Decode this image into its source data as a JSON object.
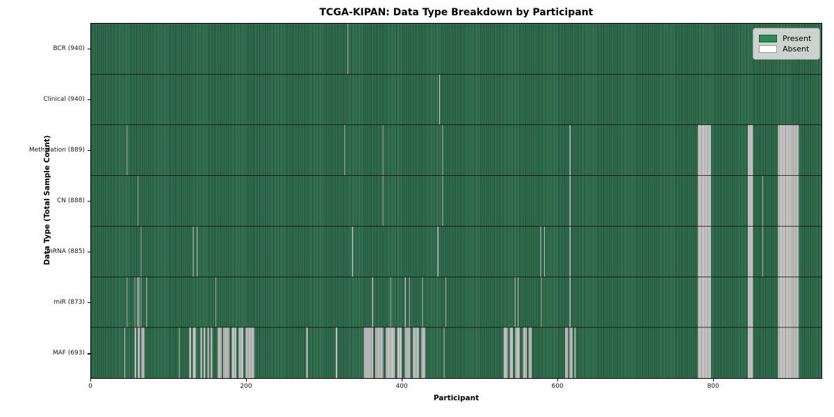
{
  "title": "TCGA-KIPAN: Data Type Breakdown by Participant",
  "xlabel": "Participant",
  "ylabel": "Data Type (Total Sample Count)",
  "legend": {
    "entries": [
      {
        "label": "Present",
        "color": "#2e8b57"
      },
      {
        "label": "Absent",
        "color": "#ffffff"
      }
    ]
  },
  "colors": {
    "present_base": "#30734f",
    "absent_stripe": "#d2d2d2",
    "separator": "#000000"
  },
  "chart_data": {
    "type": "heatmap",
    "x_max": 940,
    "x_ticks": [
      0,
      200,
      400,
      600,
      800
    ],
    "legend_position": "upper right",
    "grid": false,
    "rows": [
      {
        "label": "BCR (940)",
        "total": 940,
        "absent": [
          [
            330,
            331
          ]
        ]
      },
      {
        "label": "Clinical (940)",
        "total": 940,
        "absent": [
          [
            448,
            449
          ]
        ]
      },
      {
        "label": "Methylation (889)",
        "total": 889,
        "absent": [
          [
            46,
            47
          ],
          [
            326,
            327
          ],
          [
            375,
            376
          ],
          [
            452,
            453
          ],
          [
            616,
            617
          ],
          [
            781,
            798
          ],
          [
            845,
            852
          ],
          [
            884,
            911
          ]
        ]
      },
      {
        "label": "CN (888)",
        "total": 888,
        "absent": [
          [
            60,
            61
          ],
          [
            375,
            376
          ],
          [
            452,
            453
          ],
          [
            616,
            617
          ],
          [
            781,
            798
          ],
          [
            845,
            852
          ],
          [
            864,
            865
          ],
          [
            884,
            911
          ]
        ]
      },
      {
        "label": "mRNA (885)",
        "total": 885,
        "absent": [
          [
            64,
            65
          ],
          [
            131,
            132
          ],
          [
            136,
            137
          ],
          [
            336,
            337
          ],
          [
            446,
            447
          ],
          [
            578,
            579
          ],
          [
            583,
            584
          ],
          [
            616,
            617
          ],
          [
            781,
            798
          ],
          [
            845,
            852
          ],
          [
            864,
            865
          ],
          [
            884,
            911
          ]
        ]
      },
      {
        "label": "miR (873)",
        "total": 873,
        "absent": [
          [
            46,
            47
          ],
          [
            56,
            57
          ],
          [
            59,
            60
          ],
          [
            61,
            62
          ],
          [
            64,
            65
          ],
          [
            71,
            72
          ],
          [
            160,
            161
          ],
          [
            362,
            363
          ],
          [
            385,
            386
          ],
          [
            404,
            405
          ],
          [
            409,
            410
          ],
          [
            426,
            427
          ],
          [
            456,
            457
          ],
          [
            545,
            546
          ],
          [
            549,
            550
          ],
          [
            579,
            580
          ],
          [
            616,
            617
          ],
          [
            781,
            798
          ],
          [
            845,
            852
          ],
          [
            884,
            911
          ]
        ]
      },
      {
        "label": "MAF (693)",
        "total": 693,
        "absent": [
          [
            43,
            44
          ],
          [
            56,
            58
          ],
          [
            60,
            63
          ],
          [
            65,
            69
          ],
          [
            113,
            114
          ],
          [
            126,
            129
          ],
          [
            131,
            135
          ],
          [
            141,
            143
          ],
          [
            145,
            147
          ],
          [
            150,
            152
          ],
          [
            154,
            156
          ],
          [
            163,
            168
          ],
          [
            170,
            178
          ],
          [
            181,
            187
          ],
          [
            190,
            196
          ],
          [
            199,
            210
          ],
          [
            277,
            279
          ],
          [
            315,
            317
          ],
          [
            351,
            363
          ],
          [
            366,
            376
          ],
          [
            379,
            391
          ],
          [
            394,
            400
          ],
          [
            404,
            411
          ],
          [
            414,
            422
          ],
          [
            425,
            430
          ],
          [
            454,
            455
          ],
          [
            531,
            536
          ],
          [
            539,
            543
          ],
          [
            546,
            552
          ],
          [
            556,
            561
          ],
          [
            563,
            567
          ],
          [
            610,
            614
          ],
          [
            616,
            620
          ],
          [
            622,
            624
          ],
          [
            781,
            798
          ],
          [
            845,
            852
          ],
          [
            884,
            911
          ]
        ]
      }
    ]
  }
}
